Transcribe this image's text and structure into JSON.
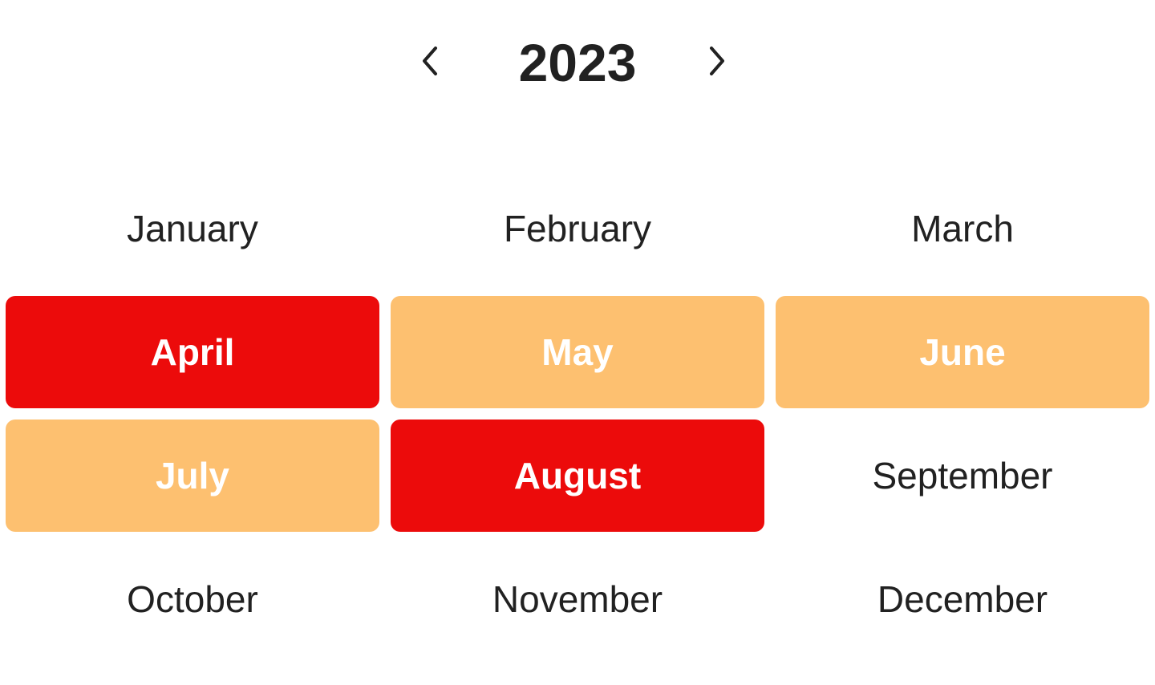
{
  "header": {
    "year": "2023",
    "prev_icon": "chevron-left-icon",
    "next_icon": "chevron-right-icon"
  },
  "colors": {
    "selected": "#ec0b0b",
    "in_range": "#fdc070",
    "text": "#212121"
  },
  "months": [
    {
      "label": "January",
      "state": "default"
    },
    {
      "label": "February",
      "state": "default"
    },
    {
      "label": "March",
      "state": "default"
    },
    {
      "label": "April",
      "state": "selected"
    },
    {
      "label": "May",
      "state": "range"
    },
    {
      "label": "June",
      "state": "range"
    },
    {
      "label": "July",
      "state": "range"
    },
    {
      "label": "August",
      "state": "selected"
    },
    {
      "label": "September",
      "state": "default"
    },
    {
      "label": "October",
      "state": "default"
    },
    {
      "label": "November",
      "state": "default"
    },
    {
      "label": "December",
      "state": "default"
    }
  ]
}
